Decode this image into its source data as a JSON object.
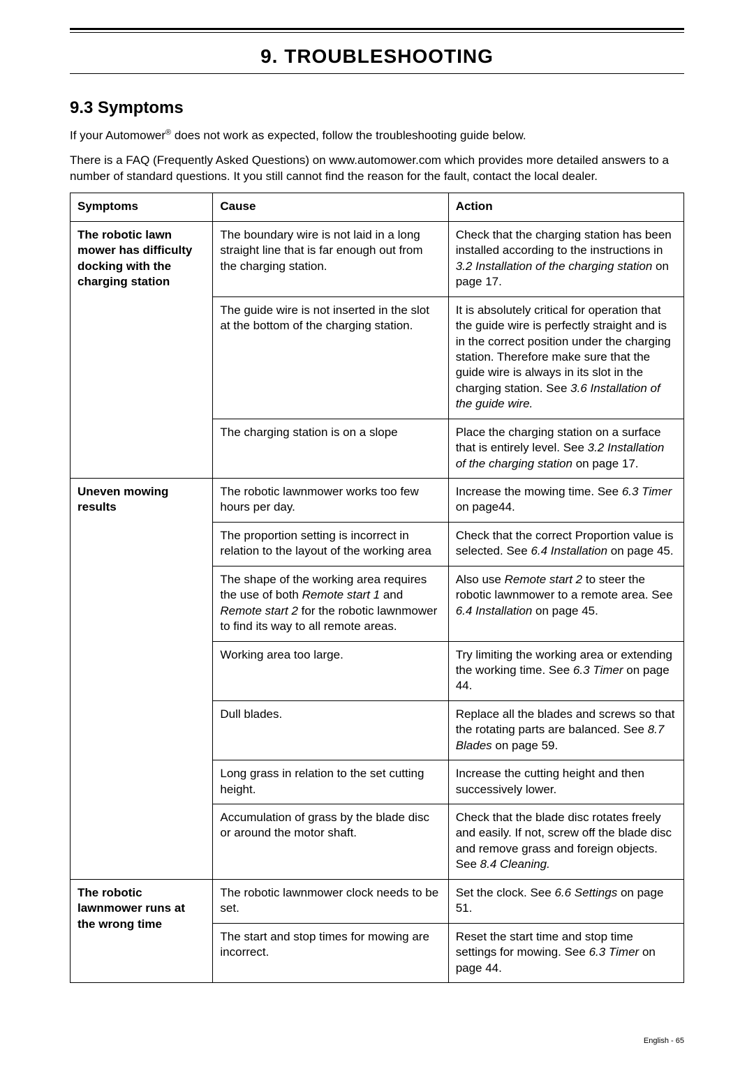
{
  "chapter_title": "9. TROUBLESHOOTING",
  "section_title": "9.3 Symptoms",
  "intro": {
    "p1_a": "If your Automower",
    "p1_reg": "®",
    "p1_b": " does not work as expected, follow the troubleshooting guide below.",
    "p2": "There is a FAQ (Frequently Asked Questions) on www.automower.com which provides more detailed answers to a number of standard questions. It you still cannot find the reason for the fault, contact the local dealer."
  },
  "table": {
    "headers": {
      "c1": "Symptoms",
      "c2": "Cause",
      "c3": "Action"
    },
    "groups": [
      {
        "symptom": "The robotic lawn mower has difficulty docking with the charging station",
        "rows": [
          {
            "cause": "The boundary wire is not laid in a long straight line that is far enough out from the charging station.",
            "action_pre": "Check that the charging station has been installed according to the instructions in ",
            "action_it": "3.2 Installation of the charging station",
            "action_post": " on page 17."
          },
          {
            "cause": "The guide wire is not inserted in the slot at the bottom of the charging station.",
            "action_pre": "It is absolutely critical for operation that the guide wire is perfectly straight and is in the correct position under the charging station. Therefore make sure that the guide wire is always in its slot in the charging station. See ",
            "action_it": "3.6 Installation of the guide wire.",
            "action_post": ""
          },
          {
            "cause": "The charging station is on a slope",
            "action_pre": "Place the charging station on a surface that is entirely level. See ",
            "action_it": "3.2 Installation of the charging station",
            "action_post": " on page 17."
          }
        ]
      },
      {
        "symptom": "Uneven mowing results",
        "rows": [
          {
            "cause": "The robotic lawnmower works too few hours per day.",
            "action_pre": "Increase the mowing time. See ",
            "action_it": "6.3 Timer",
            "action_post": " on page44."
          },
          {
            "cause": "The proportion setting is incorrect in relation to the layout of the working area",
            "action_pre": "Check that the correct Proportion value is selected. See ",
            "action_it": "6.4 Installation",
            "action_post": " on page 45."
          },
          {
            "cause_pre": "The shape of the working area requires the use of both ",
            "cause_it1": "Remote start 1",
            "cause_mid": " and ",
            "cause_it2": "Remote start 2",
            "cause_post": " for the robotic lawnmower to find its way to all remote areas.",
            "action_pre": "Also use ",
            "action_it": "Remote start 2",
            "action_mid": " to steer the robotic lawnmower to a remote area. See ",
            "action_it2": "6.4 Installation",
            "action_post": " on page 45."
          },
          {
            "cause": "Working area too large.",
            "action_pre": "Try limiting the working area or extending the working time. See ",
            "action_it": "6.3 Timer",
            "action_post": " on page 44."
          },
          {
            "cause": "Dull blades.",
            "action_pre": "Replace all the blades and screws so that the rotating parts are balanced. See ",
            "action_it": "8.7 Blades",
            "action_post": " on page 59."
          },
          {
            "cause": "Long grass in relation to the set cutting height.",
            "action_plain": "Increase the cutting height and then successively lower."
          },
          {
            "cause": "Accumulation of grass by the blade disc or around the motor shaft.",
            "action_pre": "Check that the blade disc rotates freely and easily. If not, screw off the blade disc and remove grass and foreign objects. See ",
            "action_it": "8.4 Cleaning.",
            "action_post": ""
          }
        ]
      },
      {
        "symptom": "The robotic lawnmower runs at the wrong time",
        "rows": [
          {
            "cause": "The robotic lawnmower clock needs to be set.",
            "action_pre": "Set the clock. See ",
            "action_it": "6.6 Settings",
            "action_post": " on page 51."
          },
          {
            "cause": "The start and stop times for mowing are incorrect.",
            "action_pre": "Reset the start time and stop time settings for mowing. See ",
            "action_it": "6.3 Timer",
            "action_post": " on page 44."
          }
        ]
      }
    ]
  },
  "footer": "English - 65"
}
